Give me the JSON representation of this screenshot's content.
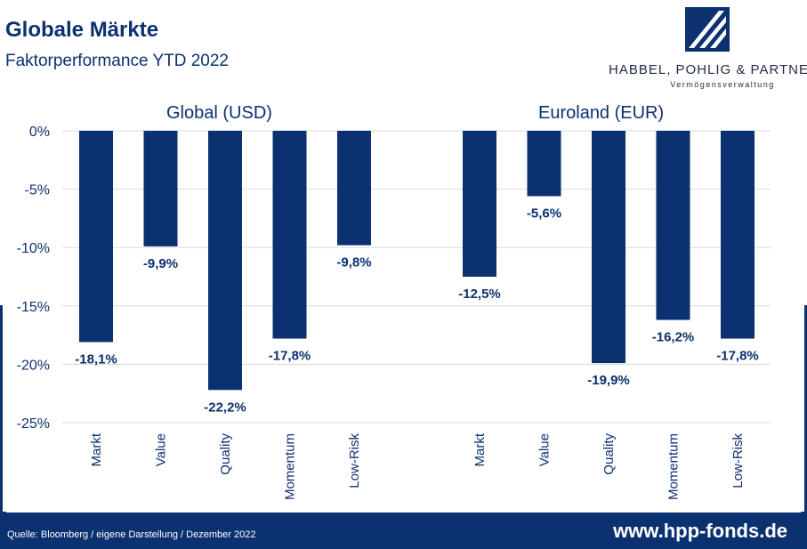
{
  "header": {
    "title": "Globale Märkte",
    "subtitle": "Faktorperformance YTD 2022"
  },
  "logo": {
    "name": "HABBEL, POHLIG & PARTNER",
    "tagline": "Vermögensverwaltung"
  },
  "footer": {
    "source": "Quelle: Bloomberg / eigene Darstellung / Dezember 2022",
    "url": "www.hpp-fonds.de"
  },
  "colors": {
    "bar": "#0b3170",
    "grid": "#d9d9d9",
    "text": "#0b3170"
  },
  "chart_data": {
    "type": "bar",
    "y_ticks": [
      0,
      -5,
      -10,
      -15,
      -20,
      -25
    ],
    "y_tick_labels": [
      "0%",
      "-5%",
      "-10%",
      "-15%",
      "-20%",
      "-25%"
    ],
    "ylim": [
      -25,
      0
    ],
    "grid": true,
    "panels": [
      {
        "title": "Global (USD)",
        "categories": [
          "Markt",
          "Value",
          "Quality",
          "Momentum",
          "Low-Risk"
        ],
        "values": [
          -18.1,
          -9.9,
          -22.2,
          -17.8,
          -9.8
        ],
        "value_labels": [
          "-18,1%",
          "-9,9%",
          "-22,2%",
          "-17,8%",
          "-9,8%"
        ]
      },
      {
        "title": "Euroland (EUR)",
        "categories": [
          "Markt",
          "Value",
          "Quality",
          "Momentum",
          "Low-Risk"
        ],
        "values": [
          -12.5,
          -5.6,
          -19.9,
          -16.2,
          -17.8
        ],
        "value_labels": [
          "-12,5%",
          "-5,6%",
          "-19,9%",
          "-16,2%",
          "-17,8%"
        ]
      }
    ]
  }
}
